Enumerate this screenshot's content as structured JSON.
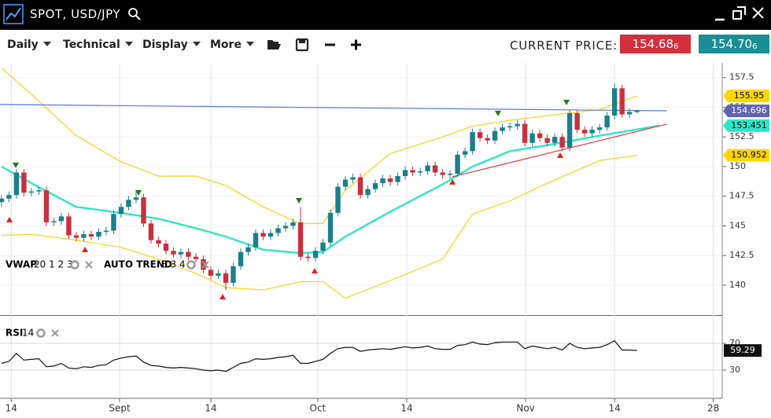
{
  "window": {
    "title": "SPOT, USD/JPY"
  },
  "toolbar": {
    "menus": [
      "Daily",
      "Technical",
      "Display",
      "More"
    ],
    "price_label": "CURRENT PRICE:",
    "bid": {
      "main": "154.68",
      "pip": "6"
    },
    "ask": {
      "main": "154.70",
      "pip": "6"
    }
  },
  "chart_data": [
    {
      "type": "candlestick",
      "up_color": "#1b7f8c",
      "down_color": "#c8303f",
      "ohlc": [
        [
          147.0,
          147.6,
          146.6,
          147.3
        ],
        [
          147.3,
          147.9,
          147.0,
          147.6
        ],
        [
          147.6,
          149.8,
          147.3,
          149.5
        ],
        [
          149.5,
          149.8,
          147.5,
          147.8
        ],
        [
          147.8,
          148.2,
          147.5,
          147.9
        ],
        [
          147.9,
          148.3,
          147.6,
          148.0
        ],
        [
          148.0,
          148.3,
          145.0,
          145.3
        ],
        [
          145.3,
          145.7,
          145.0,
          145.4
        ],
        [
          145.4,
          146.1,
          145.1,
          145.8
        ],
        [
          145.8,
          146.1,
          143.9,
          144.2
        ],
        [
          144.2,
          144.5,
          143.7,
          144.0
        ],
        [
          144.0,
          144.6,
          143.7,
          144.3
        ],
        [
          144.3,
          144.6,
          143.8,
          144.1
        ],
        [
          144.1,
          144.8,
          143.8,
          144.5
        ],
        [
          144.5,
          144.9,
          144.2,
          144.6
        ],
        [
          144.6,
          146.3,
          144.3,
          146.0
        ],
        [
          146.0,
          146.9,
          145.7,
          146.6
        ],
        [
          146.6,
          147.5,
          146.3,
          147.2
        ],
        [
          147.2,
          147.9,
          146.9,
          147.4
        ],
        [
          147.4,
          147.7,
          144.9,
          145.2
        ],
        [
          145.2,
          145.5,
          143.5,
          143.8
        ],
        [
          143.8,
          144.1,
          143.2,
          143.5
        ],
        [
          143.5,
          143.8,
          142.6,
          142.9
        ],
        [
          142.9,
          143.2,
          142.3,
          142.6
        ],
        [
          142.6,
          143.1,
          142.3,
          142.8
        ],
        [
          142.8,
          143.1,
          142.1,
          142.4
        ],
        [
          142.4,
          142.7,
          141.9,
          142.2
        ],
        [
          142.2,
          142.5,
          141.0,
          141.3
        ],
        [
          141.3,
          141.6,
          140.5,
          140.8
        ],
        [
          140.8,
          141.3,
          140.5,
          141.0
        ],
        [
          141.0,
          141.3,
          139.6,
          140.2
        ],
        [
          140.2,
          141.9,
          139.9,
          141.6
        ],
        [
          141.6,
          143.1,
          141.3,
          142.8
        ],
        [
          142.8,
          143.5,
          142.5,
          143.2
        ],
        [
          143.2,
          144.7,
          142.9,
          144.4
        ],
        [
          144.4,
          144.7,
          143.8,
          144.1
        ],
        [
          144.1,
          144.7,
          143.8,
          144.4
        ],
        [
          144.4,
          145.1,
          144.1,
          144.8
        ],
        [
          144.8,
          145.3,
          144.5,
          145.0
        ],
        [
          145.0,
          145.6,
          144.7,
          145.3
        ],
        [
          145.3,
          146.6,
          142.1,
          142.4
        ],
        [
          142.4,
          142.7,
          142.0,
          142.3
        ],
        [
          142.3,
          143.2,
          142.0,
          142.9
        ],
        [
          142.9,
          143.9,
          142.6,
          143.6
        ],
        [
          143.6,
          146.4,
          143.3,
          146.1
        ],
        [
          146.1,
          148.6,
          145.8,
          148.3
        ],
        [
          148.3,
          149.2,
          148.0,
          148.9
        ],
        [
          148.9,
          149.4,
          148.6,
          149.1
        ],
        [
          149.1,
          149.4,
          147.3,
          147.6
        ],
        [
          147.6,
          148.4,
          147.3,
          148.1
        ],
        [
          148.1,
          148.9,
          147.8,
          148.6
        ],
        [
          148.6,
          149.3,
          148.3,
          149.0
        ],
        [
          149.0,
          149.3,
          148.4,
          148.7
        ],
        [
          148.7,
          149.5,
          148.4,
          149.2
        ],
        [
          149.2,
          150.0,
          148.9,
          149.7
        ],
        [
          149.7,
          150.0,
          149.2,
          149.5
        ],
        [
          149.5,
          149.9,
          149.2,
          149.6
        ],
        [
          149.6,
          150.4,
          149.3,
          150.1
        ],
        [
          150.1,
          150.4,
          149.2,
          149.5
        ],
        [
          149.5,
          149.8,
          149.0,
          149.3
        ],
        [
          149.3,
          149.7,
          149.0,
          149.4
        ],
        [
          149.4,
          151.3,
          149.1,
          151.0
        ],
        [
          151.0,
          151.6,
          150.7,
          151.3
        ],
        [
          151.3,
          153.2,
          151.0,
          152.9
        ],
        [
          152.9,
          153.2,
          152.1,
          152.4
        ],
        [
          152.4,
          152.7,
          151.9,
          152.2
        ],
        [
          152.2,
          153.3,
          151.9,
          153.0
        ],
        [
          153.0,
          153.6,
          152.7,
          153.3
        ],
        [
          153.3,
          153.7,
          153.0,
          153.4
        ],
        [
          153.4,
          153.9,
          153.1,
          153.6
        ],
        [
          153.6,
          153.9,
          151.7,
          152.0
        ],
        [
          152.0,
          153.1,
          151.7,
          152.8
        ],
        [
          152.8,
          153.1,
          152.1,
          152.4
        ],
        [
          152.4,
          152.7,
          151.7,
          152.0
        ],
        [
          152.0,
          152.8,
          151.7,
          152.5
        ],
        [
          152.5,
          152.8,
          151.3,
          151.6
        ],
        [
          151.6,
          154.8,
          151.3,
          154.5
        ],
        [
          154.5,
          154.8,
          152.8,
          153.1
        ],
        [
          153.1,
          153.4,
          152.5,
          152.8
        ],
        [
          152.8,
          153.4,
          152.5,
          153.1
        ],
        [
          153.1,
          153.6,
          152.8,
          153.3
        ],
        [
          153.3,
          154.6,
          153.0,
          154.3
        ],
        [
          154.3,
          157.0,
          154.0,
          156.6
        ],
        [
          156.6,
          156.9,
          154.1,
          154.4
        ],
        [
          154.4,
          154.9,
          154.1,
          154.6
        ],
        [
          154.6,
          154.8,
          154.5,
          154.7
        ]
      ],
      "overlays": [
        {
          "color": "#f5d31c",
          "width": 1.2,
          "x": [
            0,
            4,
            10,
            16,
            21,
            26,
            30,
            35,
            40,
            43,
            46,
            52,
            59,
            63,
            68,
            73,
            80,
            85
          ],
          "values": [
            158.3,
            156.1,
            152.6,
            150.4,
            149.2,
            149.2,
            148.4,
            146.6,
            145.2,
            145.2,
            148.0,
            151.1,
            152.5,
            153.4,
            153.9,
            154.3,
            154.8,
            155.95
          ]
        },
        {
          "color": "#f5d31c",
          "width": 1.2,
          "x": [
            0,
            4,
            10,
            16,
            21,
            26,
            30,
            35,
            40,
            43,
            46,
            52,
            59,
            63,
            68,
            73,
            80,
            85
          ],
          "values": [
            144.2,
            144.3,
            143.8,
            143.2,
            142.2,
            141.0,
            139.8,
            139.6,
            140.3,
            140.3,
            138.9,
            140.4,
            142.2,
            146.0,
            147.1,
            148.6,
            150.5,
            150.952
          ]
        },
        {
          "color": "#2ee6c6",
          "width": 2.4,
          "x": [
            0,
            4,
            10,
            16,
            21,
            26,
            30,
            35,
            40,
            43,
            46,
            52,
            59,
            63,
            68,
            73,
            80,
            88
          ],
          "values": [
            150.0,
            148.6,
            146.6,
            146.1,
            145.6,
            144.8,
            144.1,
            143.0,
            142.7,
            142.8,
            144.1,
            146.2,
            148.5,
            150.0,
            151.3,
            151.8,
            152.6,
            153.451
          ]
        }
      ],
      "trendlines": [
        {
          "color": "#5a78d6",
          "x": [
            -0.2,
            89
          ],
          "values": [
            155.23,
            154.7
          ]
        },
        {
          "color": "#e23a3a",
          "x": [
            60.3,
            89
          ],
          "values": [
            149.14,
            153.58
          ]
        }
      ],
      "price_labels": [
        {
          "value": 155.95,
          "color": "#ffd700",
          "text_color": "#000000"
        },
        {
          "value": 154.696,
          "color": "#5f63b0",
          "text_color": "#ffffff"
        },
        {
          "value": 153.451,
          "color": "#2ee6c6",
          "text_color": "#000000"
        },
        {
          "value": 150.952,
          "color": "#ffd700",
          "text_color": "#000000"
        }
      ],
      "legend": [
        {
          "name": "VWAP",
          "params": "20 1 2 3"
        },
        {
          "name": "AUTO TREND",
          "params": "3 3 4"
        }
      ],
      "xlim": [
        -0.2,
        96.4
      ],
      "ylim": [
        137.55,
        158.74
      ],
      "yticks": [
        157.5,
        155,
        152.5,
        150,
        147.5,
        145,
        142.5,
        140
      ],
      "grid": true
    },
    {
      "type": "line",
      "color": "#111111",
      "legend": {
        "name": "RSI",
        "params": "14"
      },
      "values": [
        40,
        43,
        55,
        45,
        46,
        47,
        35,
        36,
        40,
        33,
        32,
        35,
        34,
        37,
        38,
        45,
        48,
        50,
        51,
        42,
        37,
        36,
        34,
        33,
        34,
        33,
        32,
        30,
        29,
        30,
        28,
        34,
        40,
        42,
        47,
        46,
        47,
        49,
        50,
        52,
        40,
        40,
        43,
        46,
        55,
        62,
        64,
        64,
        58,
        60,
        61,
        62,
        61,
        63,
        65,
        63,
        64,
        66,
        62,
        61,
        61,
        67,
        68,
        72,
        69,
        68,
        71,
        72,
        72,
        72,
        62,
        66,
        64,
        62,
        64,
        60,
        70,
        64,
        62,
        63,
        64,
        68,
        74,
        60,
        60,
        59.29
      ],
      "xlim": [
        -0.2,
        96.4
      ],
      "ylim": [
        -10,
        110
      ],
      "yticks": [
        70,
        30
      ],
      "xticks": [
        {
          "value": 1.3,
          "label": "14"
        },
        {
          "value": 15.8,
          "label": "Sept"
        },
        {
          "value": 28,
          "label": "14"
        },
        {
          "value": 42.3,
          "label": "Oct"
        },
        {
          "value": 54.2,
          "label": "14"
        },
        {
          "value": 70.1,
          "label": "Nov"
        },
        {
          "value": 82,
          "label": "14"
        },
        {
          "value": 95.2,
          "label": "28"
        }
      ],
      "grid": true
    }
  ]
}
